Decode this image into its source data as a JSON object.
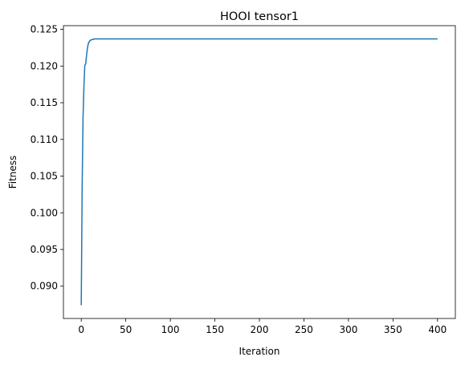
{
  "chart_data": {
    "type": "line",
    "title": "HOOI tensor1",
    "xlabel": "Iteration",
    "ylabel": "Fitness",
    "xlim": [
      -20,
      420
    ],
    "ylim": [
      0.0856,
      0.1255
    ],
    "xticks": [
      0,
      50,
      100,
      150,
      200,
      250,
      300,
      350,
      400
    ],
    "yticks": [
      0.09,
      0.095,
      0.1,
      0.105,
      0.11,
      0.115,
      0.12,
      0.125
    ],
    "ytick_labels": [
      "0.090",
      "0.095",
      "0.100",
      "0.105",
      "0.110",
      "0.115",
      "0.120",
      "0.125"
    ],
    "grid": false,
    "series": [
      {
        "color": "#1f77b4",
        "x": [
          0,
          1,
          2,
          3,
          4,
          5,
          6,
          7,
          8,
          10,
          12,
          15,
          20,
          30,
          50,
          100,
          200,
          300,
          400
        ],
        "y": [
          0.0874,
          0.1035,
          0.113,
          0.1172,
          0.1201,
          0.1203,
          0.1215,
          0.1225,
          0.1231,
          0.1235,
          0.1236,
          0.1237,
          0.1237,
          0.1237,
          0.1237,
          0.1237,
          0.1237,
          0.1237,
          0.1237
        ]
      }
    ]
  }
}
